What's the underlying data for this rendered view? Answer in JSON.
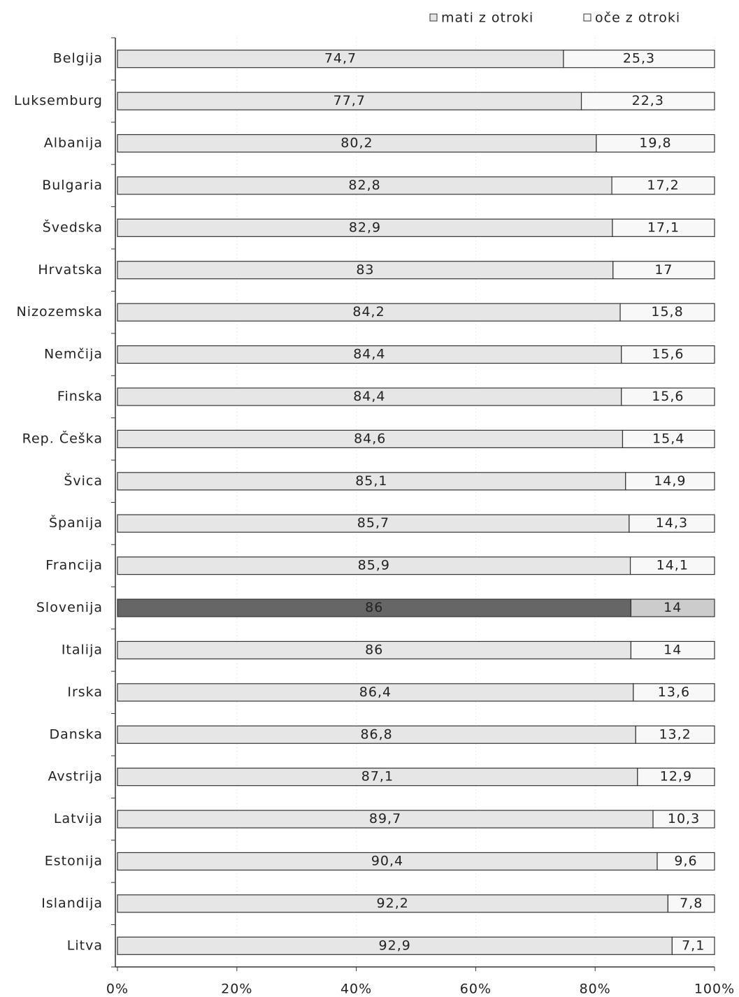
{
  "chart_data": {
    "type": "stacked_bar_horizontal",
    "categories": [
      "Belgija",
      "Luksemburg",
      "Albanija",
      "Bulgaria",
      "Švedska",
      "Hrvatska",
      "Nizozemska",
      "Nemčija",
      "Finska",
      "Rep. Češka",
      "Švica",
      "Španija",
      "Francija",
      "Slovenija",
      "Italija",
      "Irska",
      "Danska",
      "Avstrija",
      "Latvija",
      "Estonija",
      "Islandija",
      "Litva"
    ],
    "series": [
      {
        "name": "mati z otroki",
        "color": "#e6e6e6",
        "colors": [
          "#e6e6e6",
          "#e6e6e6",
          "#e6e6e6",
          "#e6e6e6",
          "#e6e6e6",
          "#e6e6e6",
          "#e6e6e6",
          "#e6e6e6",
          "#e6e6e6",
          "#e6e6e6",
          "#e6e6e6",
          "#e6e6e6",
          "#e6e6e6",
          "#666666",
          "#e6e6e6",
          "#e6e6e6",
          "#e6e6e6",
          "#e6e6e6",
          "#e6e6e6",
          "#e6e6e6",
          "#e6e6e6",
          "#e6e6e6"
        ],
        "values": [
          74.7,
          77.7,
          80.2,
          82.8,
          82.9,
          83,
          84.2,
          84.4,
          84.4,
          84.6,
          85.1,
          85.7,
          85.9,
          86,
          86,
          86.4,
          86.8,
          87.1,
          89.7,
          90.4,
          92.2,
          92.9
        ],
        "value_labels": [
          "74,7",
          "77,7",
          "80,2",
          "82,8",
          "82,9",
          "83",
          "84,2",
          "84,4",
          "84,4",
          "84,6",
          "85,1",
          "85,7",
          "85,9",
          "86",
          "86",
          "86,4",
          "86,8",
          "87,1",
          "89,7",
          "90,4",
          "92,2",
          "92,9"
        ]
      },
      {
        "name": "oče z otroki",
        "color": "#f8f8f8",
        "colors": [
          "#f8f8f8",
          "#f8f8f8",
          "#f8f8f8",
          "#f8f8f8",
          "#f8f8f8",
          "#f8f8f8",
          "#f8f8f8",
          "#f8f8f8",
          "#f8f8f8",
          "#f8f8f8",
          "#f8f8f8",
          "#f8f8f8",
          "#f8f8f8",
          "#cccccc",
          "#f8f8f8",
          "#f8f8f8",
          "#f8f8f8",
          "#f8f8f8",
          "#f8f8f8",
          "#f8f8f8",
          "#f8f8f8",
          "#f8f8f8"
        ],
        "values": [
          25.3,
          22.3,
          19.8,
          17.2,
          17.1,
          17,
          15.8,
          15.6,
          15.6,
          15.4,
          14.9,
          14.3,
          14.1,
          14,
          14,
          13.6,
          13.2,
          12.9,
          10.3,
          9.6,
          7.8,
          7.1
        ],
        "value_labels": [
          "25,3",
          "22,3",
          "19,8",
          "17,2",
          "17,1",
          "17",
          "15,8",
          "15,6",
          "15,6",
          "15,4",
          "14,9",
          "14,3",
          "14,1",
          "14",
          "14",
          "13,6",
          "13,2",
          "12,9",
          "10,3",
          "9,6",
          "7,8",
          "7,1"
        ]
      }
    ],
    "xlim": [
      0,
      100
    ],
    "xticks": [
      {
        "value": 0,
        "label": "0%"
      },
      {
        "value": 20,
        "label": "20%"
      },
      {
        "value": 40,
        "label": "40%"
      },
      {
        "value": 60,
        "label": "60%"
      },
      {
        "value": 80,
        "label": "80%"
      },
      {
        "value": 100,
        "label": "100%"
      }
    ],
    "grid": true,
    "legend": "top-right"
  }
}
